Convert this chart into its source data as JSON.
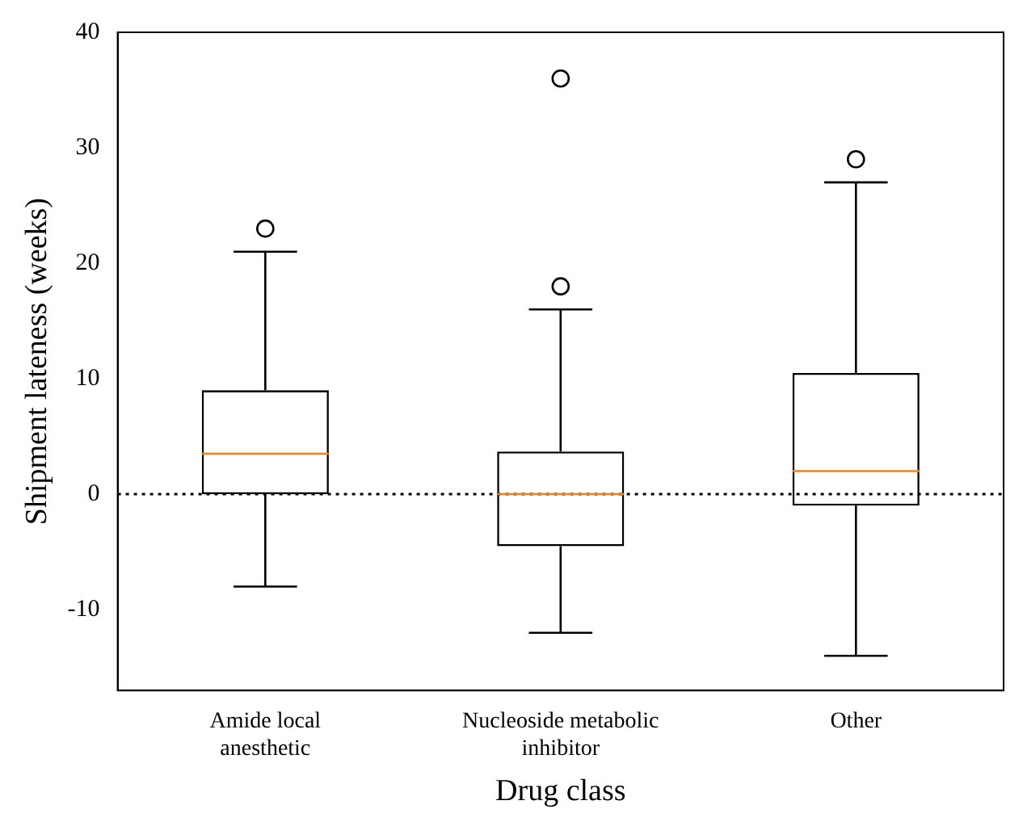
{
  "chart_data": {
    "type": "box",
    "xlabel": "Drug class",
    "ylabel": "Shipment lateness (weeks)",
    "categories": [
      "Amide local anesthetic",
      "Nucleoside metabolic inhibitor",
      "Other"
    ],
    "boxes": [
      {
        "low": -8,
        "q1": 0,
        "median": 3.5,
        "q3": 9,
        "high": 21,
        "outliers": [
          23
        ]
      },
      {
        "low": -12,
        "q1": -4.5,
        "median": 0,
        "q3": 3.7,
        "high": 16,
        "outliers": [
          18,
          36
        ]
      },
      {
        "low": -14,
        "q1": -1,
        "median": 2,
        "q3": 10.5,
        "high": 27,
        "outliers": [
          29
        ]
      }
    ],
    "ylim": [
      -17,
      40
    ],
    "yticks": [
      -10,
      0,
      10,
      20,
      30,
      40
    ],
    "grid": false,
    "legend": false,
    "ref_lines": [
      {
        "axis": "y",
        "value": 0,
        "color": "#000000",
        "line_style": "dotted"
      }
    ]
  }
}
